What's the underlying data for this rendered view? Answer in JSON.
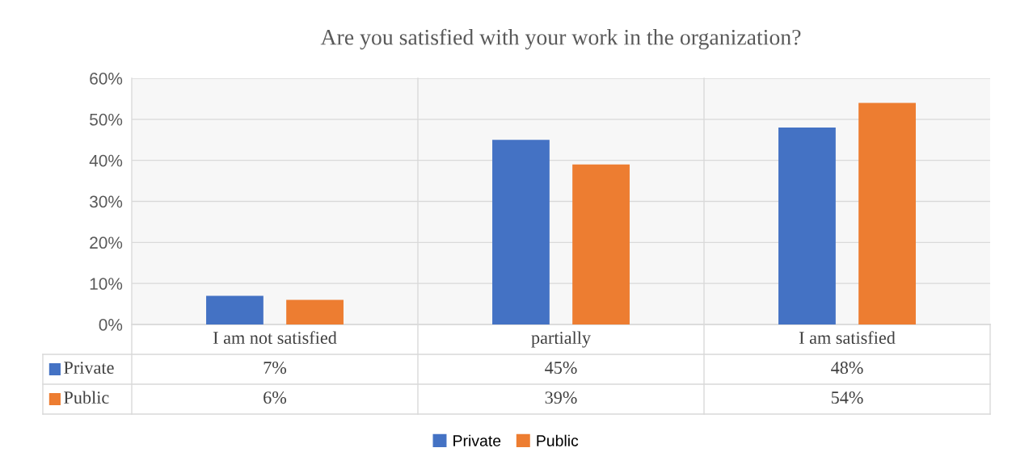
{
  "chart_data": {
    "type": "bar",
    "title": "Are you satisfied with your work in the organization?",
    "categories": [
      "I am not satisfied",
      "partially",
      "I am satisfied"
    ],
    "series": [
      {
        "name": "Private",
        "color": "#4472c4",
        "values": [
          7,
          45,
          48
        ],
        "value_labels": [
          "7%",
          "45%",
          "48%"
        ]
      },
      {
        "name": "Public",
        "color": "#ed7d31",
        "values": [
          6,
          39,
          54
        ],
        "value_labels": [
          "6%",
          "39%",
          "54%"
        ]
      }
    ],
    "ylim": [
      0,
      60
    ],
    "yticks": [
      {
        "value": 0,
        "label": "0%"
      },
      {
        "value": 10,
        "label": "10%"
      },
      {
        "value": 20,
        "label": "20%"
      },
      {
        "value": 30,
        "label": "30%"
      },
      {
        "value": 40,
        "label": "40%"
      },
      {
        "value": 50,
        "label": "50%"
      },
      {
        "value": 60,
        "label": "60%"
      }
    ],
    "grid": "y",
    "legend": "bottom"
  }
}
